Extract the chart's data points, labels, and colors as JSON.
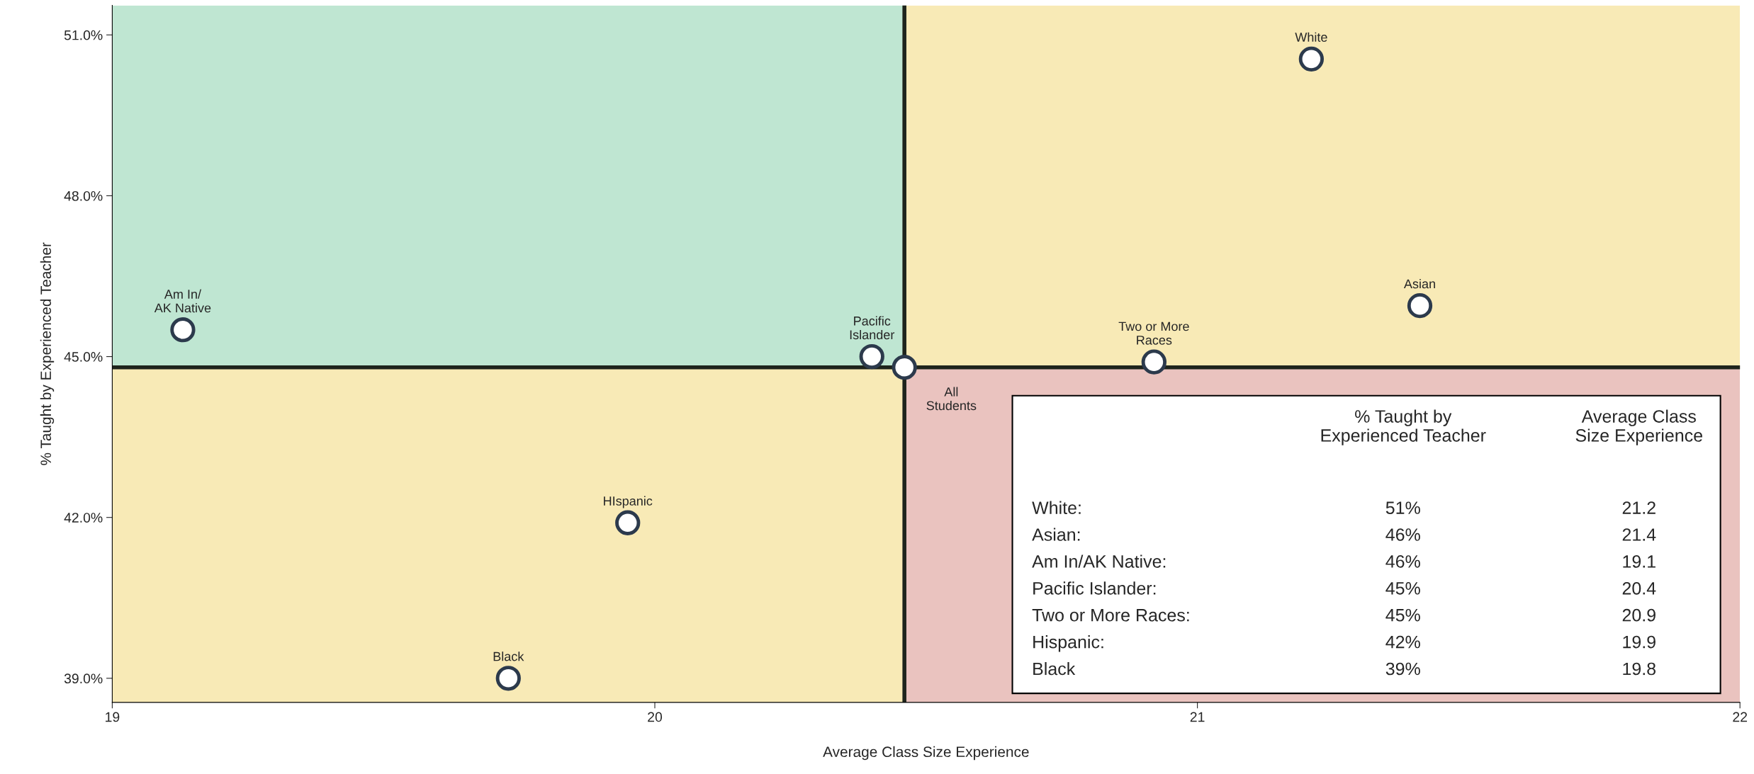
{
  "chart_data": {
    "type": "scatter",
    "xlabel": "Average Class Size Experience",
    "ylabel": "% Taught by Experienced Teacher",
    "xlim": [
      19,
      22
    ],
    "xticks": [
      19,
      20,
      21,
      22
    ],
    "ylim": [
      38.55,
      51.55
    ],
    "yticks": [
      {
        "value": 39,
        "label": "39.0%"
      },
      {
        "value": 42,
        "label": "42.0%"
      },
      {
        "value": 45,
        "label": "45.0%"
      },
      {
        "value": 48,
        "label": "48.0%"
      },
      {
        "value": 51,
        "label": "51.0%"
      }
    ],
    "grid": false,
    "legend": false,
    "marker": "circle",
    "series": [
      {
        "color": "#ffffff",
        "x": [
          21.21,
          21.41,
          19.13,
          20.4,
          20.92,
          19.95,
          19.73,
          20.46
        ],
        "values": [
          50.55,
          45.95,
          45.5,
          45.0,
          44.9,
          41.9,
          39.0,
          44.8
        ]
      }
    ],
    "ref_lines": [
      {
        "axis": "x",
        "value": 20.46,
        "color": "#1e241c"
      },
      {
        "axis": "y",
        "value": 44.8,
        "color": "#1e241c"
      }
    ],
    "annotations": [
      {
        "text": "White",
        "x": 21.21,
        "y": 50.55
      },
      {
        "text": "Asian",
        "x": 21.41,
        "y": 45.95
      },
      {
        "text": "Am In/\nAK Native",
        "x": 19.13,
        "y": 45.5
      },
      {
        "text": "Pacific\nIslander",
        "x": 20.4,
        "y": 45.0
      },
      {
        "text": "Two or More\nRaces",
        "x": 20.92,
        "y": 44.9
      },
      {
        "text": "HIspanic",
        "x": 19.95,
        "y": 41.9
      },
      {
        "text": "Black",
        "x": 19.73,
        "y": 39.0
      },
      {
        "text": "All\nStudents",
        "x": 20.46,
        "y": 44.8
      },
      "% Taught by\nExperienced Teacher",
      "Average Class\nSize Experience",
      "White:",
      "51%",
      "21.2",
      "Asian:",
      "46%",
      "21.4",
      "Am In/AK Native:",
      "46%",
      "19.1",
      "Pacific Islander:",
      "45%",
      "20.4",
      "Two or More Races:",
      "45%",
      "20.9",
      "Hispanic:",
      "42%",
      "19.9",
      "Black",
      "39%",
      "19.8"
    ]
  }
}
